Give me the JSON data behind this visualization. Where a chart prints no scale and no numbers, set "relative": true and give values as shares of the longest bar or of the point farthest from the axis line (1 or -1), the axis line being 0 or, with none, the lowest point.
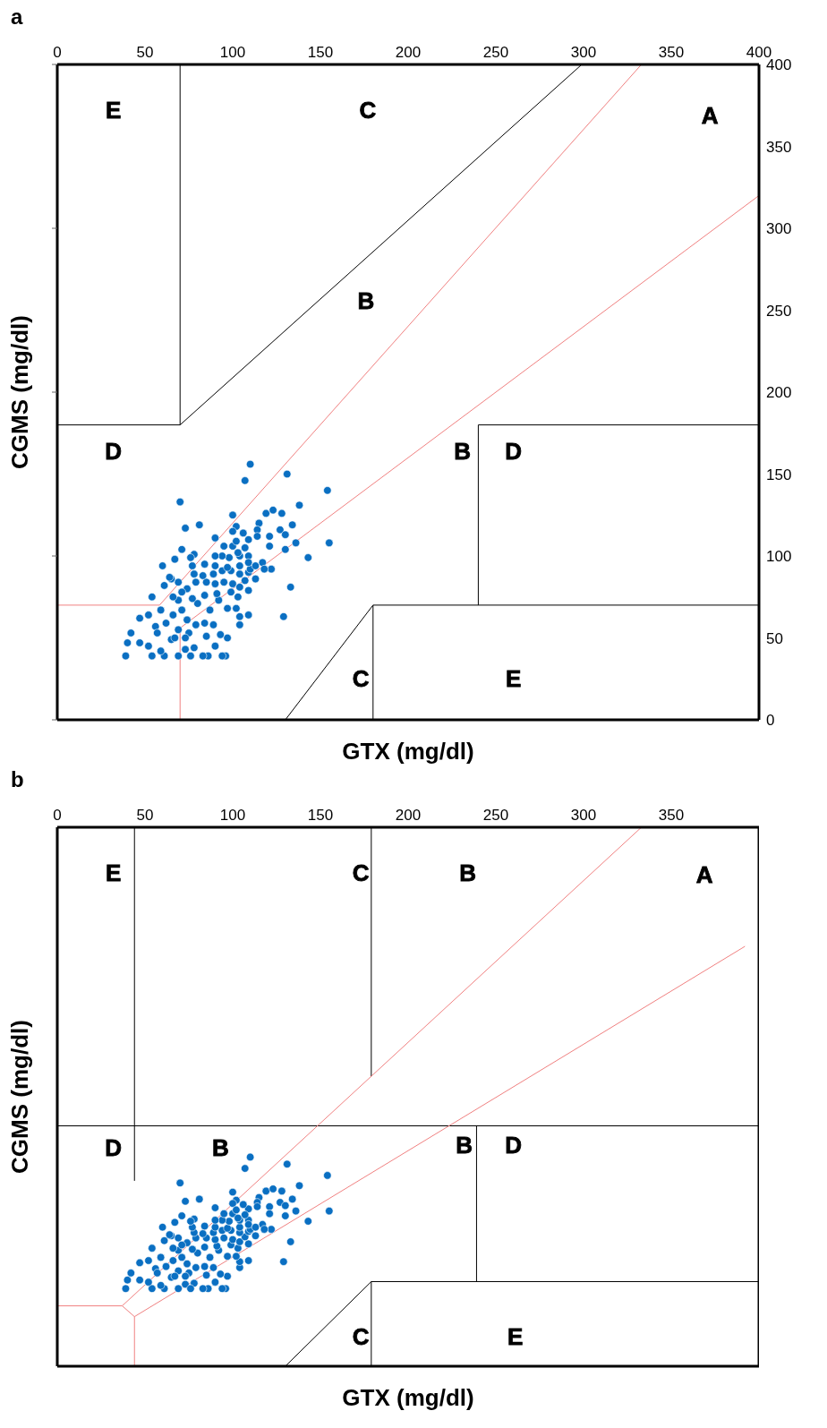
{
  "chart_data": [
    {
      "type": "scatter",
      "title": "a",
      "xlabel": "GTX (mg/dl)",
      "ylabel": "CGMS (mg/dl)",
      "xlim": [
        0,
        400
      ],
      "xticks": [
        0,
        50,
        100,
        150,
        200,
        250,
        300,
        350,
        400
      ],
      "ylim": [
        0,
        400
      ],
      "yticks": [
        0,
        50,
        100,
        150,
        200,
        250,
        300,
        350,
        400
      ],
      "series": [
        {
          "type": "line",
          "color": "#000000",
          "marker": "none",
          "x": [
            70,
            70
          ],
          "values": [
            180,
            400
          ]
        },
        {
          "type": "line",
          "color": "#000000",
          "marker": "none",
          "x": [
            0,
            70,
            299
          ],
          "values": [
            180,
            180,
            400
          ]
        },
        {
          "type": "line",
          "color": "#000000",
          "marker": "none",
          "x": [
            400,
            240,
            240
          ],
          "values": [
            180,
            180,
            70
          ]
        },
        {
          "type": "line",
          "color": "#000000",
          "marker": "none",
          "x": [
            400,
            180,
            180
          ],
          "values": [
            70,
            70,
            0
          ]
        },
        {
          "type": "line",
          "color": "#000000",
          "marker": "none",
          "x": [
            130,
            180
          ],
          "values": [
            0,
            70
          ]
        },
        {
          "type": "line",
          "color": "#f08080",
          "marker": "none",
          "x": [
            0,
            58.3,
            333
          ],
          "values": [
            70,
            70,
            400
          ]
        },
        {
          "type": "line",
          "color": "#f08080",
          "marker": "none",
          "x": [
            70,
            70,
            400
          ],
          "values": [
            0,
            56,
            320
          ]
        },
        {
          "color": "#0a6fc2",
          "marker": "circle",
          "x": [
            110,
            107,
            131,
            154,
            138,
            155,
            143,
            133,
            129,
            70,
            73,
            81,
            100,
            60,
            71,
            54,
            47,
            39,
            40,
            42,
            119,
            123,
            128,
            134,
            127,
            130,
            121,
            136,
            121,
            130,
            115,
            114,
            114,
            109,
            102,
            100,
            106,
            90,
            117,
            122,
            118,
            113,
            109,
            109,
            104,
            104,
            97,
            93,
            90,
            78,
            73,
            96,
            94,
            86,
            83,
            76,
            69,
            61,
            54,
            52,
            47,
            59,
            65,
            69,
            62,
            56,
            52,
            59,
            66,
            71,
            74,
            79,
            84,
            89,
            75,
            85,
            80,
            87,
            92,
            97,
            102,
            103,
            99,
            91,
            84,
            77,
            69,
            66,
            61,
            65,
            69,
            74,
            79,
            85,
            90,
            95,
            100,
            104,
            107,
            109,
            104,
            99,
            94,
            89,
            83,
            78,
            77,
            84,
            90,
            97,
            104,
            110,
            109,
            104,
            98,
            94,
            90,
            78,
            76,
            67,
            95,
            100,
            107,
            103,
            109,
            102,
            113,
            64,
            71,
            57,
            67,
            73
          ],
          "values": [
            156,
            146,
            150,
            140,
            131,
            108,
            99,
            81,
            63,
            133,
            117,
            119,
            125,
            94,
            104,
            75,
            62,
            39,
            47,
            53,
            126,
            128,
            126,
            119,
            116,
            113,
            112,
            108,
            106,
            104,
            120,
            116,
            112,
            110,
            118,
            115,
            114,
            111,
            96,
            92,
            92,
            86,
            79,
            64,
            58,
            63,
            50,
            52,
            45,
            44,
            43,
            39,
            39,
            39,
            39,
            39,
            39,
            39,
            39,
            45,
            47,
            42,
            49,
            55,
            59,
            57,
            64,
            67,
            64,
            67,
            61,
            58,
            59,
            58,
            53,
            51,
            71,
            67,
            73,
            68,
            68,
            75,
            78,
            77,
            76,
            74,
            73,
            75,
            82,
            86,
            84,
            80,
            84,
            84,
            83,
            84,
            83,
            81,
            85,
            90,
            89,
            91,
            91,
            89,
            88,
            89,
            94,
            95,
            94,
            93,
            94,
            92,
            100,
            100,
            99,
            100,
            100,
            101,
            99,
            98,
            106,
            106,
            105,
            102,
            96,
            109,
            94,
            87,
            78,
            53,
            50,
            50
          ]
        }
      ],
      "annotations": [
        "E",
        "C",
        "A",
        "B",
        "D",
        "B",
        "D",
        "C",
        "E"
      ]
    },
    {
      "type": "scatter",
      "title": "b",
      "xlabel": "GTX (mg/dl)",
      "ylabel": "CGMS (mg/dl)",
      "xlim": [
        0,
        400
      ],
      "xticks": [
        0,
        50,
        100,
        150,
        200,
        250,
        300,
        350
      ],
      "relative": true,
      "tick_labels": "x",
      "series": [
        {
          "type": "line",
          "color": "#000000",
          "marker": "none",
          "x": [
            44,
            44
          ],
          "values": [
            0.344,
            1
          ]
        },
        {
          "type": "line",
          "color": "#000000",
          "marker": "none",
          "x": [
            0,
            400
          ],
          "values": [
            0.446,
            0.446
          ]
        },
        {
          "type": "line",
          "color": "#000000",
          "marker": "none",
          "x": [
            179,
            179
          ],
          "values": [
            0.538,
            1
          ]
        },
        {
          "type": "line",
          "color": "#000000",
          "marker": "none",
          "x": [
            239,
            239
          ],
          "values": [
            0.446,
            0.157
          ]
        },
        {
          "type": "line",
          "color": "#000000",
          "marker": "none",
          "x": [
            400,
            179,
            179
          ],
          "values": [
            0.157,
            0.157,
            0
          ]
        },
        {
          "type": "line",
          "color": "#000000",
          "marker": "none",
          "x": [
            130,
            179
          ],
          "values": [
            0,
            0.157
          ]
        },
        {
          "type": "line",
          "color": "#f08080",
          "marker": "none",
          "x": [
            0,
            37,
            333
          ],
          "values": [
            0.112,
            0.112,
            1
          ]
        },
        {
          "type": "line",
          "color": "#f08080",
          "marker": "none",
          "x": [
            37,
            44,
            44
          ],
          "values": [
            0.112,
            0.092,
            0
          ]
        },
        {
          "type": "line",
          "color": "#f08080",
          "marker": "none",
          "x": [
            44,
            392
          ],
          "values": [
            0.092,
            0.779
          ]
        },
        {
          "type": "line",
          "color": "#000000",
          "marker": "none",
          "x": [
            400,
            400
          ],
          "values": [
            0,
            1
          ]
        },
        {
          "color": "#0a6fc2",
          "marker": "circle",
          "x": [
            110,
            107,
            131,
            154,
            138,
            155,
            143,
            133,
            129,
            70,
            73,
            81,
            100,
            60,
            71,
            54,
            47,
            39,
            40,
            42,
            119,
            123,
            128,
            134,
            127,
            130,
            121,
            136,
            121,
            130,
            115,
            114,
            114,
            109,
            102,
            100,
            106,
            90,
            117,
            122,
            118,
            113,
            109,
            109,
            104,
            104,
            97,
            93,
            90,
            78,
            73,
            96,
            94,
            86,
            83,
            76,
            69,
            61,
            54,
            52,
            47,
            59,
            65,
            69,
            62,
            56,
            52,
            59,
            66,
            71,
            74,
            79,
            84,
            89,
            75,
            85,
            80,
            87,
            92,
            97,
            102,
            103,
            99,
            91,
            84,
            77,
            69,
            66,
            61,
            65,
            69,
            74,
            79,
            85,
            90,
            95,
            100,
            104,
            107,
            109,
            104,
            99,
            94,
            89,
            83,
            78,
            77,
            84,
            90,
            97,
            104,
            110,
            109,
            104,
            98,
            94,
            90,
            78,
            76,
            67,
            95,
            100,
            107,
            103,
            109,
            102,
            113,
            64,
            71,
            57,
            67,
            73
          ],
          "values": [
            0.388,
            0.367,
            0.375,
            0.354,
            0.335,
            0.288,
            0.269,
            0.231,
            0.194,
            0.34,
            0.306,
            0.31,
            0.323,
            0.258,
            0.279,
            0.219,
            0.192,
            0.144,
            0.16,
            0.173,
            0.325,
            0.329,
            0.325,
            0.31,
            0.304,
            0.298,
            0.296,
            0.288,
            0.283,
            0.279,
            0.313,
            0.304,
            0.296,
            0.292,
            0.308,
            0.302,
            0.3,
            0.294,
            0.263,
            0.254,
            0.254,
            0.242,
            0.227,
            0.196,
            0.183,
            0.194,
            0.167,
            0.171,
            0.156,
            0.154,
            0.152,
            0.144,
            0.144,
            0.144,
            0.144,
            0.144,
            0.144,
            0.144,
            0.144,
            0.156,
            0.16,
            0.15,
            0.165,
            0.177,
            0.185,
            0.181,
            0.196,
            0.202,
            0.196,
            0.202,
            0.19,
            0.183,
            0.185,
            0.183,
            0.173,
            0.169,
            0.21,
            0.202,
            0.215,
            0.204,
            0.204,
            0.219,
            0.225,
            0.223,
            0.221,
            0.217,
            0.215,
            0.219,
            0.233,
            0.242,
            0.238,
            0.229,
            0.238,
            0.238,
            0.235,
            0.238,
            0.235,
            0.231,
            0.24,
            0.25,
            0.248,
            0.252,
            0.252,
            0.248,
            0.246,
            0.248,
            0.258,
            0.26,
            0.258,
            0.256,
            0.258,
            0.254,
            0.271,
            0.271,
            0.269,
            0.271,
            0.271,
            0.273,
            0.269,
            0.267,
            0.283,
            0.283,
            0.281,
            0.275,
            0.263,
            0.29,
            0.258,
            0.244,
            0.225,
            0.173,
            0.167,
            0.167
          ]
        }
      ],
      "annotations": [
        "E",
        "C",
        "B",
        "A",
        "D",
        "B",
        "B",
        "D",
        "C",
        "E"
      ]
    }
  ]
}
